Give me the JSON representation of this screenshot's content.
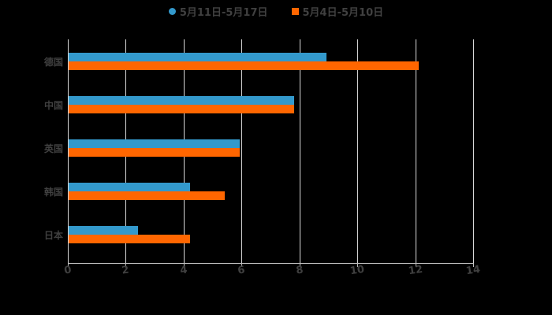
{
  "chart_data": {
    "type": "bar",
    "orientation": "horizontal",
    "title": "",
    "xlabel": "",
    "ylabel": "",
    "categories": [
      "德国",
      "中国",
      "英国",
      "韩国",
      "日本"
    ],
    "series": [
      {
        "name": "5月11日-5月17日",
        "color": "#3399cc",
        "values": [
          8.9,
          7.8,
          5.9,
          4.2,
          2.4
        ]
      },
      {
        "name": "5月4日-5月10日",
        "color": "#ff6600",
        "values": [
          12.1,
          7.8,
          5.9,
          5.4,
          4.2
        ]
      }
    ],
    "xlim": [
      0,
      14
    ],
    "xticks": [
      "0",
      "2",
      "4",
      "6",
      "8",
      "10",
      "12",
      "14"
    ],
    "grid": true,
    "legend_position": "top"
  },
  "legend": {
    "items": [
      {
        "label": "5月11日-5月17日",
        "color": "#3399cc",
        "marker": "circle"
      },
      {
        "label": "5月4日-5月10日",
        "color": "#ff6600",
        "marker": "square"
      }
    ]
  }
}
